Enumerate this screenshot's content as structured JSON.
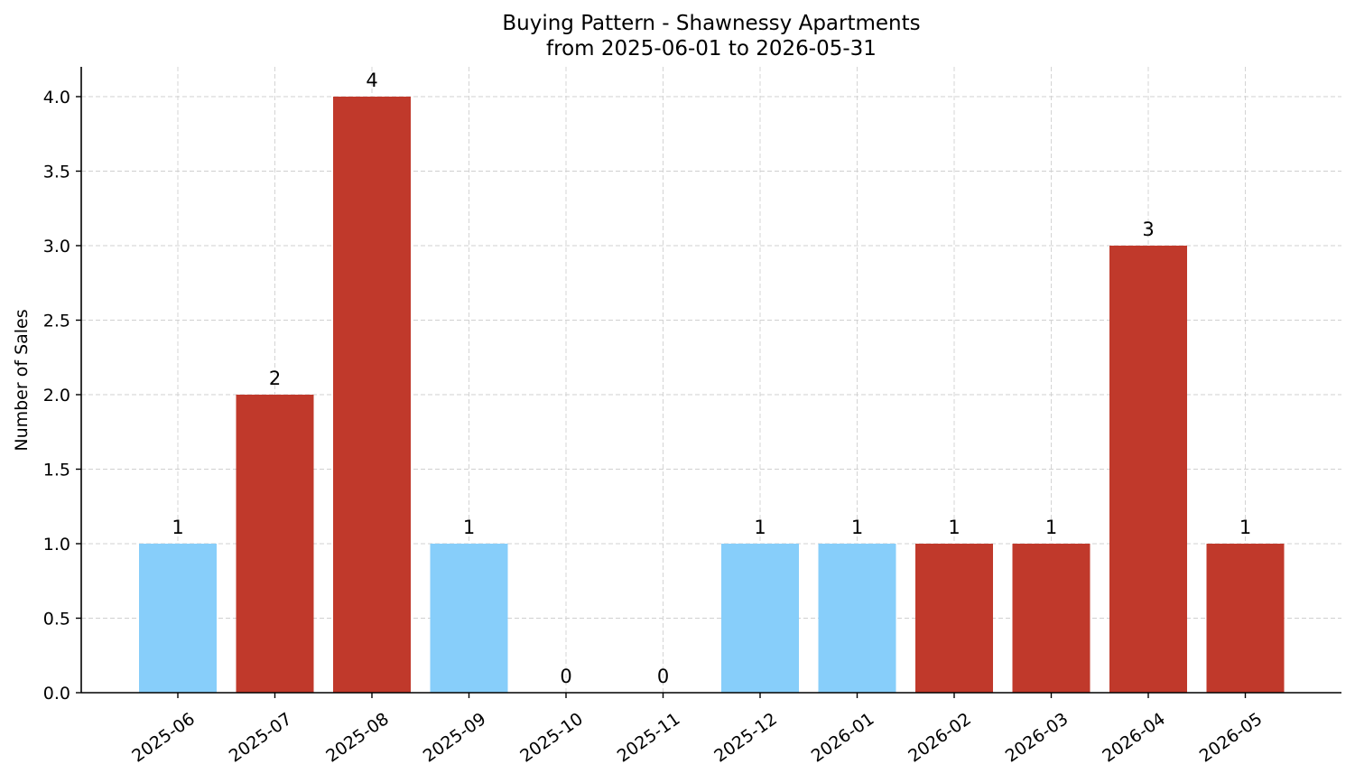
{
  "chart_data": {
    "type": "bar",
    "title": "Buying Pattern - Shawnessy Apartments",
    "subtitle": "from 2025-06-01 to 2026-05-31",
    "xlabel": "",
    "ylabel": "Number of Sales",
    "categories": [
      "2025-06",
      "2025-07",
      "2025-08",
      "2025-09",
      "2025-10",
      "2025-11",
      "2025-12",
      "2026-01",
      "2026-02",
      "2026-03",
      "2026-04",
      "2026-05"
    ],
    "values": [
      1,
      2,
      4,
      1,
      0,
      0,
      1,
      1,
      1,
      1,
      3,
      1
    ],
    "data_labels": [
      "1",
      "2",
      "4",
      "1",
      "0",
      "0",
      "1",
      "1",
      "1",
      "1",
      "3",
      "1"
    ],
    "bar_colors": [
      "#87cefa",
      "#c0392b",
      "#c0392b",
      "#87cefa",
      "#87cefa",
      "#87cefa",
      "#87cefa",
      "#87cefa",
      "#c0392b",
      "#c0392b",
      "#c0392b",
      "#c0392b"
    ],
    "ylim": [
      0,
      4.2
    ],
    "yticks": [
      0.0,
      0.5,
      1.0,
      1.5,
      2.0,
      2.5,
      3.0,
      3.5,
      4.0
    ],
    "ytick_labels": [
      "0.0",
      "0.5",
      "1.0",
      "1.5",
      "2.0",
      "2.5",
      "3.0",
      "3.5",
      "4.0"
    ],
    "grid": true,
    "legend": "none"
  }
}
